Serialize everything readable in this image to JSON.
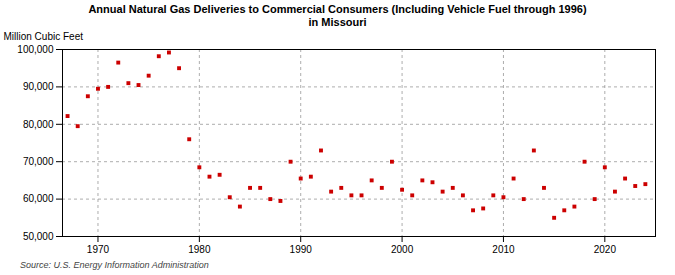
{
  "chart_data": {
    "type": "scatter",
    "title": "Annual Natural Gas Deliveries to Commercial Consumers (Including Vehicle Fuel through 1996)",
    "subtitle": "in Missouri",
    "ylabel": "Million Cubic Feet",
    "source": "Source: U.S. Energy Information Administration",
    "color": "#cc0000",
    "marker": "square",
    "grid": true,
    "xlim": [
      1966.5,
      2025
    ],
    "xticks": [
      1970,
      1980,
      1990,
      2000,
      2010,
      2020
    ],
    "ylim": [
      50000,
      100000
    ],
    "yticks": [
      {
        "value": 50000,
        "label": "50,000"
      },
      {
        "value": 60000,
        "label": "60,000"
      },
      {
        "value": 70000,
        "label": "70,000"
      },
      {
        "value": 80000,
        "label": "80,000"
      },
      {
        "value": 90000,
        "label": "90,000"
      },
      {
        "value": 100000,
        "label": "100,000"
      }
    ],
    "x": [
      1967,
      1968,
      1969,
      1970,
      1971,
      1972,
      1973,
      1974,
      1975,
      1976,
      1977,
      1978,
      1979,
      1980,
      1981,
      1982,
      1983,
      1984,
      1985,
      1986,
      1987,
      1988,
      1989,
      1990,
      1991,
      1992,
      1993,
      1994,
      1995,
      1996,
      1997,
      1998,
      1999,
      2000,
      2001,
      2002,
      2003,
      2004,
      2005,
      2006,
      2007,
      2008,
      2009,
      2010,
      2011,
      2012,
      2013,
      2014,
      2015,
      2016,
      2017,
      2018,
      2019,
      2020,
      2021,
      2022,
      2023,
      2024
    ],
    "values": [
      82200,
      79500,
      87500,
      89500,
      90000,
      96500,
      91000,
      90500,
      93000,
      98200,
      99200,
      95000,
      76000,
      68500,
      66000,
      66500,
      60500,
      58000,
      63000,
      63000,
      60000,
      59500,
      70000,
      65500,
      66000,
      73000,
      62000,
      63000,
      61000,
      61000,
      65000,
      63000,
      70000,
      62500,
      61000,
      65000,
      64500,
      62000,
      63000,
      61000,
      57000,
      57500,
      61000,
      60500,
      65500,
      60000,
      73000,
      63000,
      55000,
      57000,
      58000,
      70000,
      60000,
      68500,
      62000,
      65500,
      63500,
      64000
    ]
  }
}
